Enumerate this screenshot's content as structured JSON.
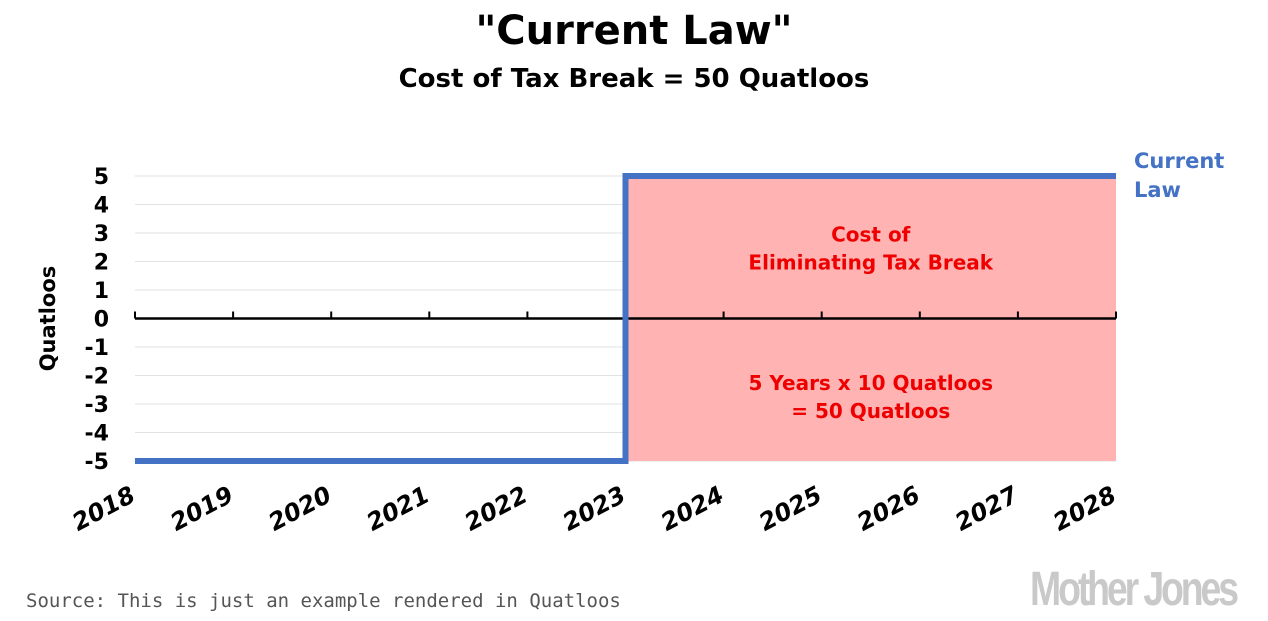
{
  "title": "\"Current Law\"",
  "subtitle": "Cost of Tax Break = 50 Quatloos",
  "source": "Source: This is just an example rendered in Quatloos",
  "logo_text": "Mother Jones",
  "chart_data": {
    "type": "line",
    "title": "\"Current Law\"",
    "subtitle": "Cost of Tax Break = 50 Quatloos",
    "xlabel": "",
    "ylabel": "Quatloos",
    "x": [
      2018,
      2019,
      2020,
      2021,
      2022,
      2023,
      2024,
      2025,
      2026,
      2027,
      2028
    ],
    "x_tick_labels": [
      "2018",
      "2019",
      "2020",
      "2021",
      "2022",
      "2023",
      "2024",
      "2025",
      "2026",
      "2027",
      "2028"
    ],
    "xlim": [
      2018,
      2028
    ],
    "ylim": [
      -5,
      5
    ],
    "y_ticks": [
      5,
      4,
      3,
      2,
      1,
      0,
      -1,
      -2,
      -3,
      -4,
      -5
    ],
    "grid": true,
    "series": [
      {
        "name": "Current Law",
        "label_lines": [
          "Current",
          "Law"
        ],
        "color": "#4472c4",
        "step": true,
        "points": [
          [
            2018,
            -5
          ],
          [
            2023,
            -5
          ],
          [
            2023,
            5
          ],
          [
            2028,
            5
          ]
        ]
      }
    ],
    "shaded_region": {
      "x_start": 2023,
      "x_end": 2028,
      "y_start": -5,
      "y_end": 5,
      "color": "#ffb3b3"
    },
    "annotations": [
      {
        "lines": [
          "Cost of",
          "Eliminating Tax Break"
        ],
        "x": 2025.5,
        "y": 2.7,
        "color": "#ee0000"
      },
      {
        "lines": [
          "5 Years x 10 Quatloos",
          "= 50 Quatloos"
        ],
        "x": 2025.5,
        "y": -2.5,
        "color": "#ee0000"
      }
    ]
  }
}
